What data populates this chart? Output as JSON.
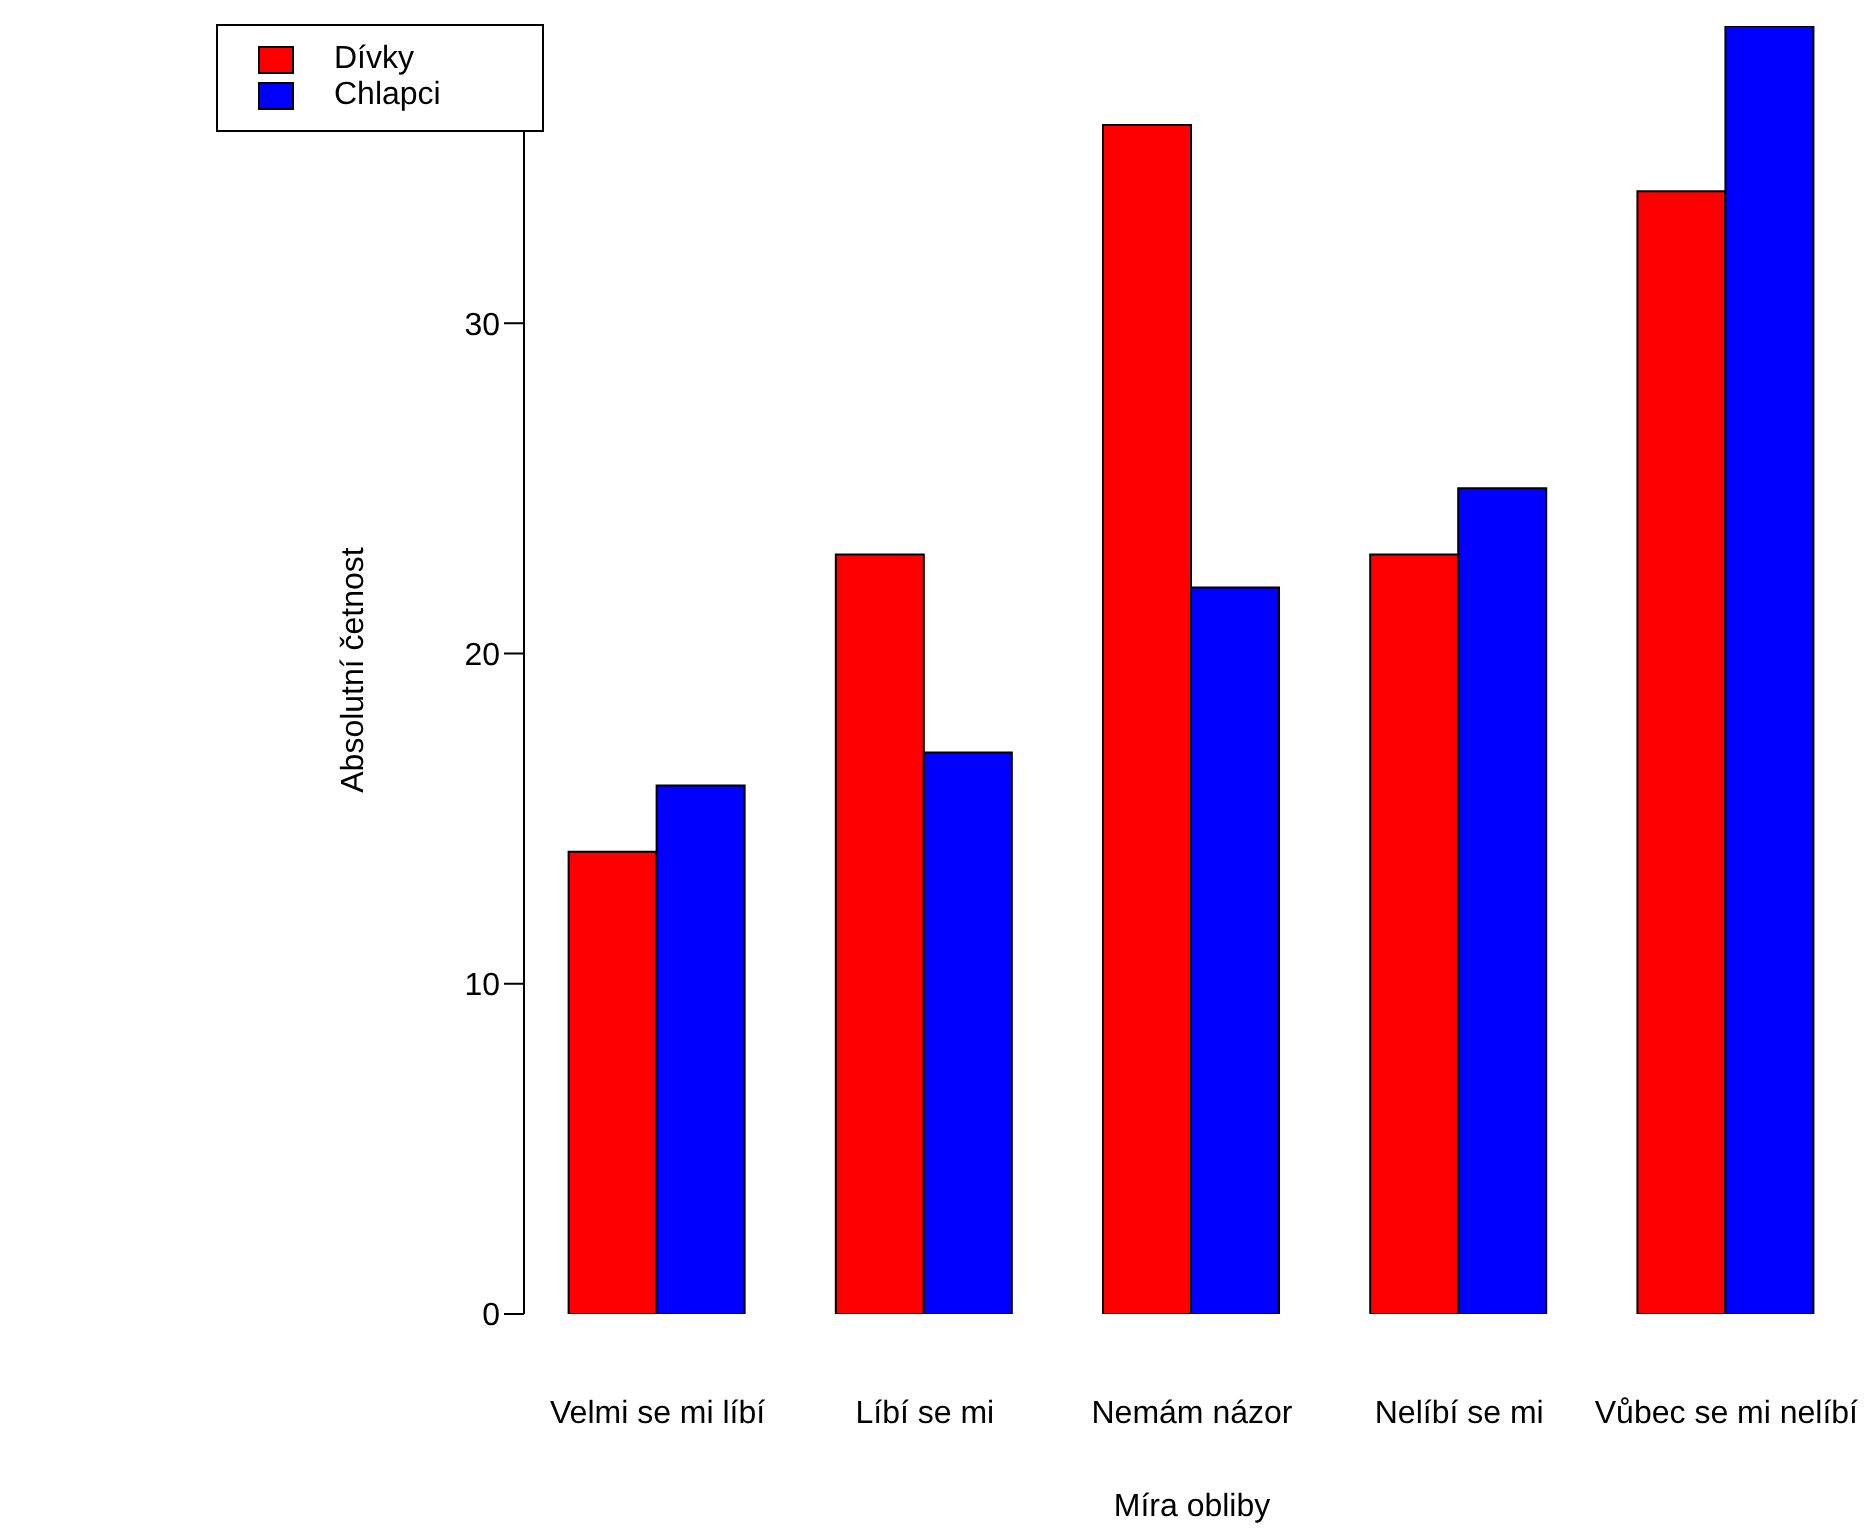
{
  "chart_data": {
    "type": "bar",
    "xlabel": "Míra obliby",
    "ylabel": "Absolutní četnost",
    "categories": [
      "Velmi se mi líbí",
      "Líbí se mi",
      "Nemám názor",
      "Nelíbí se mi",
      "Vůbec se mi nelíbí"
    ],
    "series": [
      {
        "name": "Dívky",
        "color": "#ff0000",
        "values": [
          14,
          23,
          36,
          23,
          34
        ]
      },
      {
        "name": "Chlapci",
        "color": "#0000ff",
        "values": [
          16,
          17,
          22,
          25,
          39
        ]
      }
    ],
    "ylim": [
      0,
      39
    ],
    "yticks": [
      0,
      10,
      20,
      30
    ],
    "grid": false,
    "legend": "top left"
  }
}
